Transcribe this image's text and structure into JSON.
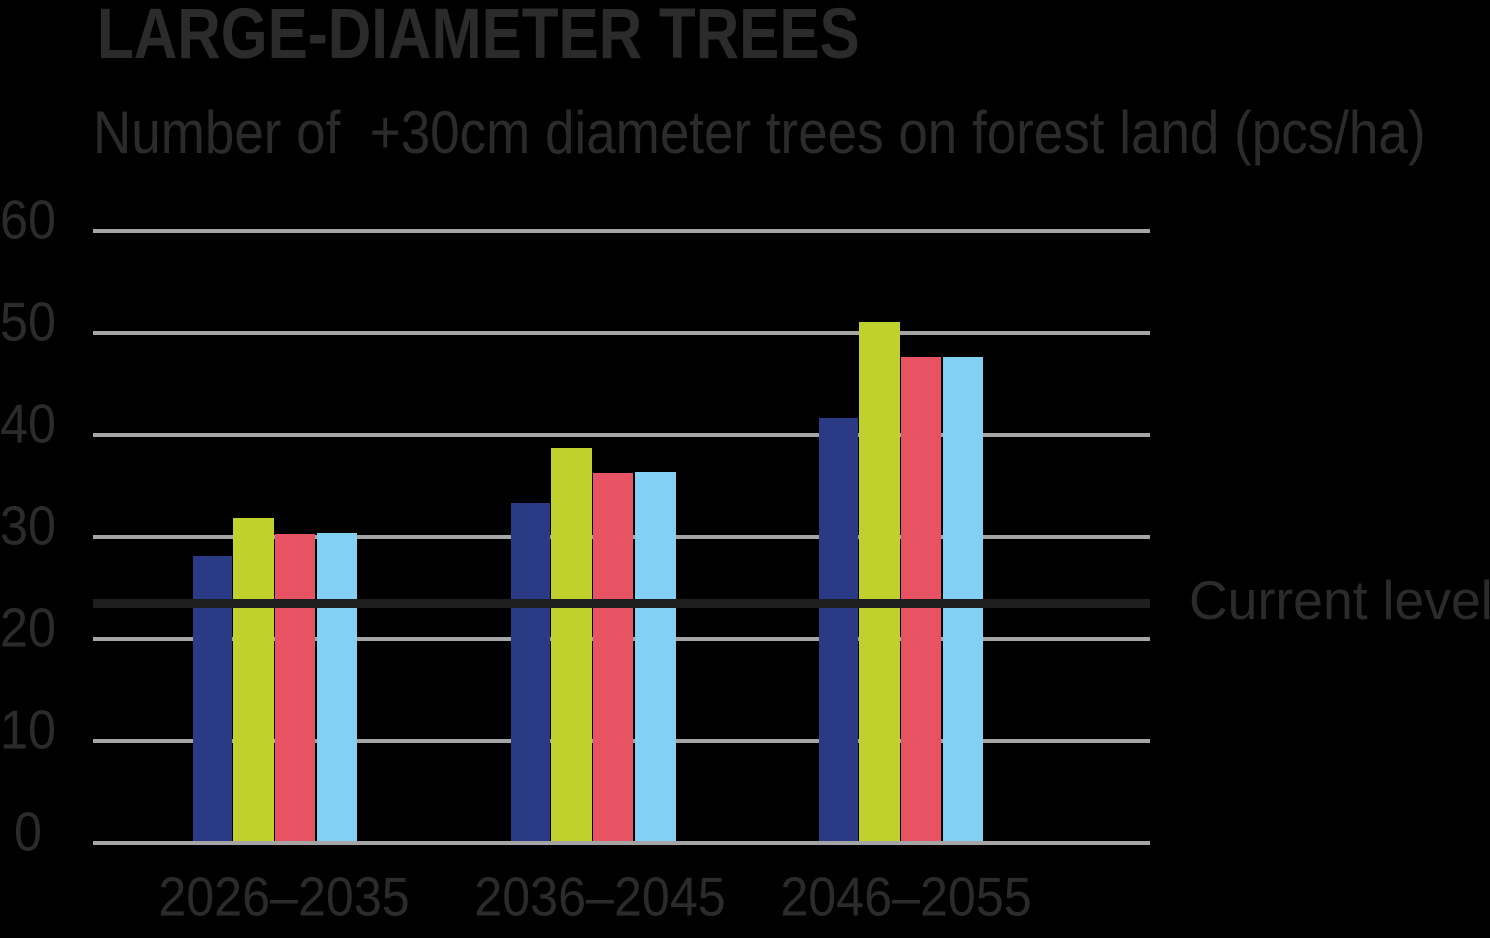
{
  "title": "LARGE-DIAMETER TREES",
  "subtitle": "Number of  +30cm diameter trees on forest land (pcs/ha)",
  "annotation": {
    "label": "Current level",
    "value": 23.45
  },
  "colors": {
    "background": "#000000",
    "text": "#2b2b2b",
    "gridline": "#a5a5a5",
    "current_level_line": "#1e1e1e"
  },
  "chart_data": {
    "type": "bar",
    "title": "LARGE-DIAMETER TREES",
    "subtitle": "Number of  +30cm diameter trees on forest land (pcs/ha)",
    "categories": [
      "2026–2035",
      "2036–2045",
      "2046–2055"
    ],
    "series": [
      {
        "name": "dark-blue",
        "color": "#2a3a85",
        "values": [
          28.1,
          33.3,
          41.6
        ]
      },
      {
        "name": "lime-green",
        "color": "#c0d12e",
        "values": [
          31.8,
          38.7,
          51.0
        ]
      },
      {
        "name": "red",
        "color": "#e85364",
        "values": [
          30.3,
          36.2,
          47.6
        ]
      },
      {
        "name": "light-blue",
        "color": "#82d1f4",
        "values": [
          30.4,
          36.3,
          47.6
        ]
      }
    ],
    "y_ticks": [
      0,
      10,
      20,
      30,
      40,
      50,
      60
    ],
    "ylim": [
      0,
      60
    ],
    "xlabel": "",
    "ylabel": "",
    "grid": true,
    "legend": false,
    "reference_line": {
      "label": "Current level",
      "value": 23.45
    }
  }
}
